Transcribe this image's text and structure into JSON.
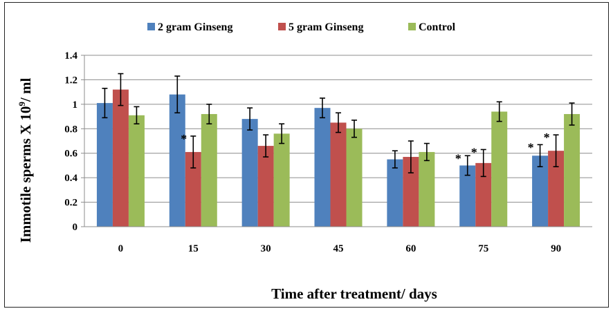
{
  "chart_data": {
    "type": "bar",
    "xlabel": "Time after treatment/ days",
    "ylabel_parts": [
      "Immotile sperms X 10",
      "9",
      "/ ml"
    ],
    "categories": [
      "0",
      "15",
      "30",
      "45",
      "60",
      "75",
      "90"
    ],
    "ylim": [
      0,
      1.4
    ],
    "yticks": [
      "0",
      "0.2",
      "0.4",
      "0.6",
      "0.8",
      "1",
      "1.2",
      "1.4"
    ],
    "ytick_values": [
      0,
      0.2,
      0.4,
      0.6,
      0.8,
      1.0,
      1.2,
      1.4
    ],
    "grid": true,
    "legend_position": "top",
    "series": [
      {
        "name": "2 gram Ginseng",
        "color": "#4F81BD",
        "values": [
          1.01,
          1.08,
          0.88,
          0.97,
          0.55,
          0.5,
          0.58
        ],
        "errors": [
          0.12,
          0.15,
          0.09,
          0.08,
          0.07,
          0.08,
          0.09
        ],
        "significance": [
          "",
          "",
          "",
          "",
          "",
          "*",
          "*"
        ]
      },
      {
        "name": "5 gram Ginseng",
        "color": "#C0504D",
        "values": [
          1.12,
          0.61,
          0.66,
          0.85,
          0.57,
          0.52,
          0.62
        ],
        "errors": [
          0.13,
          0.13,
          0.09,
          0.08,
          0.13,
          0.11,
          0.13
        ],
        "significance": [
          "",
          "*",
          "",
          "",
          "",
          "*",
          "*"
        ]
      },
      {
        "name": "Control",
        "color": "#9BBB59",
        "values": [
          0.91,
          0.92,
          0.76,
          0.8,
          0.61,
          0.94,
          0.92
        ],
        "errors": [
          0.07,
          0.08,
          0.08,
          0.07,
          0.07,
          0.08,
          0.09
        ],
        "significance": [
          "",
          "",
          "",
          "",
          "",
          "",
          ""
        ]
      }
    ]
  }
}
